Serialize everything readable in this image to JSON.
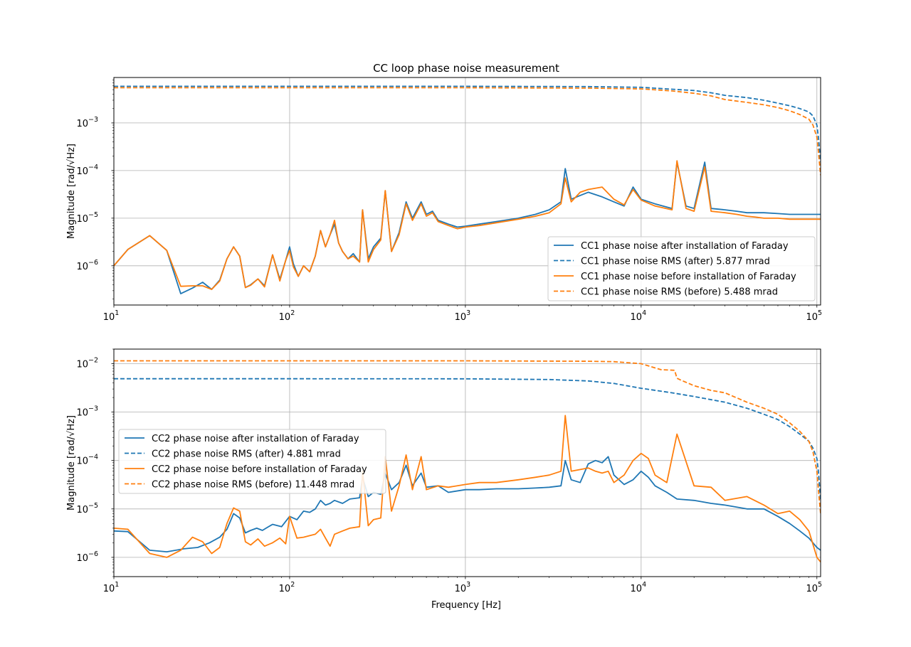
{
  "colors": {
    "after": "#1f77b4",
    "before": "#ff7f0e",
    "grid": "#b0b0b0",
    "axes": "#000000"
  },
  "chart_data": [
    {
      "type": "line",
      "title": "CC loop phase noise measurement",
      "xlabel": "",
      "ylabel": "Magnitude [rad/√Hz]",
      "xscale": "log",
      "yscale": "log",
      "xlim": [
        10,
        105000
      ],
      "ylim": [
        1.5e-07,
        0.009
      ],
      "grid": true,
      "legend_position": "lower right",
      "xticks": [
        {
          "base": "10",
          "exp": "1"
        },
        {
          "base": "10",
          "exp": "2"
        },
        {
          "base": "10",
          "exp": "3"
        },
        {
          "base": "10",
          "exp": "4"
        },
        {
          "base": "10",
          "exp": "5"
        }
      ],
      "yticks": [
        {
          "base": "10",
          "exp": "−6"
        },
        {
          "base": "10",
          "exp": "−5"
        },
        {
          "base": "10",
          "exp": "−4"
        },
        {
          "base": "10",
          "exp": "−3"
        }
      ],
      "series": [
        {
          "name": "CC1 phase noise after installation of Faraday",
          "color": "#1f77b4",
          "style": "solid",
          "x": [
            10,
            12,
            16,
            20,
            24,
            28,
            32,
            36,
            40,
            44,
            48,
            52,
            56,
            60,
            66,
            72,
            80,
            88,
            95,
            100,
            105,
            112,
            120,
            130,
            140,
            150,
            160,
            170,
            180,
            190,
            200,
            215,
            230,
            250,
            260,
            280,
            300,
            330,
            350,
            380,
            420,
            460,
            500,
            560,
            600,
            650,
            700,
            800,
            900,
            1000,
            1200,
            1500,
            2000,
            2500,
            3000,
            3500,
            3700,
            4000,
            4500,
            5000,
            6000,
            7000,
            8000,
            9000,
            10000,
            12000,
            15000,
            16000,
            18000,
            20000,
            23000,
            25000,
            30000,
            35000,
            40000,
            45000,
            50000,
            60000,
            70000,
            80000,
            90000,
            100000,
            105000
          ],
          "y": [
            1e-06,
            2.2e-06,
            4.3e-06,
            2.1e-06,
            2.6e-07,
            3.4e-07,
            4.5e-07,
            3.2e-07,
            5e-07,
            1.4e-06,
            2.5e-06,
            1.6e-06,
            3.5e-07,
            4e-07,
            5.3e-07,
            3.8e-07,
            1.7e-06,
            5.2e-07,
            1.3e-06,
            2.5e-06,
            1.1e-06,
            6e-07,
            1e-06,
            7.5e-07,
            1.6e-06,
            5.5e-06,
            2.5e-06,
            4.5e-06,
            7.5e-06,
            3e-06,
            2e-06,
            1.4e-06,
            1.8e-06,
            1.2e-06,
            1.5e-05,
            1.4e-06,
            2.5e-06,
            3.8e-06,
            3.7e-05,
            2e-06,
            5e-06,
            2.2e-05,
            1e-05,
            2.2e-05,
            1.2e-05,
            1.4e-05,
            9e-06,
            7.5e-06,
            6.5e-06,
            6.8e-06,
            7.5e-06,
            8.5e-06,
            1e-05,
            1.2e-05,
            1.5e-05,
            2.2e-05,
            0.00011,
            2.5e-05,
            3e-05,
            3.5e-05,
            2.8e-05,
            2.2e-05,
            1.8e-05,
            4.5e-05,
            2.5e-05,
            2e-05,
            1.6e-05,
            0.00015,
            1.8e-05,
            1.6e-05,
            0.00015,
            1.6e-05,
            1.5e-05,
            1.4e-05,
            1.3e-05,
            1.3e-05,
            1.3e-05,
            1.25e-05,
            1.2e-05,
            1.2e-05,
            1.2e-05,
            1.2e-05,
            1.2e-05
          ]
        },
        {
          "name": "CC1 phase noise RMS (after) 5.877 mrad",
          "color": "#1f77b4",
          "style": "dashed",
          "x": [
            10,
            100,
            1000,
            5000,
            10000,
            15000,
            20000,
            25000,
            30000,
            40000,
            50000,
            60000,
            70000,
            80000,
            90000,
            95000,
            100000,
            102000,
            105000
          ],
          "y": [
            0.00588,
            0.00588,
            0.00587,
            0.0058,
            0.0056,
            0.0051,
            0.0048,
            0.0043,
            0.0038,
            0.0034,
            0.003,
            0.0026,
            0.0023,
            0.002,
            0.0017,
            0.0014,
            0.0009,
            0.0005,
            0.00015
          ]
        },
        {
          "name": "CC1 phase noise before installation of Faraday",
          "color": "#ff7f0e",
          "style": "solid",
          "x": [
            10,
            12,
            16,
            20,
            24,
            28,
            32,
            36,
            40,
            44,
            48,
            52,
            56,
            60,
            66,
            72,
            80,
            88,
            95,
            100,
            105,
            112,
            120,
            130,
            140,
            150,
            160,
            170,
            180,
            190,
            200,
            215,
            230,
            250,
            260,
            280,
            300,
            330,
            350,
            380,
            420,
            460,
            500,
            560,
            600,
            650,
            700,
            800,
            900,
            1000,
            1200,
            1500,
            2000,
            2500,
            3000,
            3500,
            3700,
            4000,
            4500,
            5000,
            6000,
            7000,
            8000,
            9000,
            10000,
            12000,
            15000,
            16000,
            18000,
            20000,
            23000,
            25000,
            30000,
            35000,
            40000,
            45000,
            50000,
            60000,
            70000,
            80000,
            90000,
            100000,
            105000
          ],
          "y": [
            1e-06,
            2.2e-06,
            4.3e-06,
            2.1e-06,
            3.7e-07,
            3.8e-07,
            3.8e-07,
            3.2e-07,
            4.8e-07,
            1.4e-06,
            2.5e-06,
            1.6e-06,
            3.5e-07,
            3.9e-07,
            5.3e-07,
            3.6e-07,
            1.7e-06,
            4.8e-07,
            1.3e-06,
            2.1e-06,
            9.5e-07,
            6e-07,
            1e-06,
            7.5e-07,
            1.6e-06,
            5.5e-06,
            2.5e-06,
            4.5e-06,
            9e-06,
            3e-06,
            2e-06,
            1.4e-06,
            1.6e-06,
            1.2e-06,
            1.5e-05,
            1.2e-06,
            2.2e-06,
            3.5e-06,
            3.8e-05,
            2e-06,
            4.5e-06,
            2e-05,
            9e-06,
            2e-05,
            1.1e-05,
            1.3e-05,
            8.5e-06,
            7e-06,
            6e-06,
            6.5e-06,
            7e-06,
            8e-06,
            9.5e-06,
            1.1e-05,
            1.3e-05,
            2e-05,
            7e-05,
            2.2e-05,
            3.5e-05,
            4e-05,
            4.5e-05,
            2.5e-05,
            1.9e-05,
            4e-05,
            2.4e-05,
            1.8e-05,
            1.5e-05,
            0.00016,
            1.6e-05,
            1.4e-05,
            0.00012,
            1.4e-05,
            1.3e-05,
            1.2e-05,
            1.1e-05,
            1.05e-05,
            1e-05,
            1e-05,
            9.5e-06,
            9.5e-06,
            9.5e-06,
            9.5e-06,
            9.5e-06
          ]
        },
        {
          "name": "CC1 phase noise RMS (before) 5.488 mrad",
          "color": "#ff7f0e",
          "style": "dashed",
          "x": [
            10,
            100,
            1000,
            5000,
            10000,
            15000,
            20000,
            25000,
            30000,
            40000,
            50000,
            60000,
            70000,
            80000,
            90000,
            95000,
            100000,
            102000,
            105000
          ],
          "y": [
            0.00549,
            0.00549,
            0.00548,
            0.0054,
            0.0052,
            0.0047,
            0.0042,
            0.0037,
            0.0031,
            0.0027,
            0.0024,
            0.0021,
            0.0018,
            0.0015,
            0.0012,
            0.0009,
            0.0005,
            0.00025,
            8e-05
          ]
        }
      ],
      "legend": [
        "CC1 phase noise after installation of Faraday",
        "CC1 phase noise RMS (after) 5.877 mrad",
        "CC1 phase noise before installation of Faraday",
        "CC1 phase noise RMS (before) 5.488 mrad"
      ]
    },
    {
      "type": "line",
      "title": "",
      "xlabel": "Frequency [Hz]",
      "ylabel": "Magnitude [rad/√Hz]",
      "xscale": "log",
      "yscale": "log",
      "xlim": [
        10,
        105000
      ],
      "ylim": [
        4e-07,
        0.02
      ],
      "grid": true,
      "legend_position": "center left",
      "xticks": [
        {
          "base": "10",
          "exp": "1"
        },
        {
          "base": "10",
          "exp": "2"
        },
        {
          "base": "10",
          "exp": "3"
        },
        {
          "base": "10",
          "exp": "4"
        },
        {
          "base": "10",
          "exp": "5"
        }
      ],
      "yticks": [
        {
          "base": "10",
          "exp": "−6"
        },
        {
          "base": "10",
          "exp": "−5"
        },
        {
          "base": "10",
          "exp": "−4"
        },
        {
          "base": "10",
          "exp": "−3"
        },
        {
          "base": "10",
          "exp": "−2"
        }
      ],
      "series": [
        {
          "name": "CC2 phase noise after installation of Faraday",
          "color": "#1f77b4",
          "style": "solid",
          "x": [
            10,
            12,
            16,
            20,
            25,
            30,
            35,
            40,
            44,
            48,
            52,
            56,
            60,
            65,
            70,
            75,
            80,
            90,
            100,
            110,
            120,
            130,
            140,
            150,
            160,
            170,
            180,
            200,
            220,
            250,
            260,
            280,
            300,
            330,
            350,
            380,
            420,
            460,
            500,
            560,
            600,
            700,
            800,
            1000,
            1200,
            1500,
            2000,
            2500,
            3000,
            3500,
            3700,
            4000,
            4500,
            5000,
            5500,
            6000,
            6500,
            7000,
            8000,
            9000,
            10000,
            11000,
            12000,
            14000,
            16000,
            20000,
            25000,
            30000,
            40000,
            50000,
            60000,
            70000,
            80000,
            90000,
            100000,
            105000
          ],
          "y": [
            3.5e-06,
            3.4e-06,
            1.4e-06,
            1.3e-06,
            1.5e-06,
            1.6e-06,
            2e-06,
            2.6e-06,
            3.8e-06,
            8e-06,
            6.5e-06,
            3.2e-06,
            3.6e-06,
            4e-06,
            3.6e-06,
            4.2e-06,
            4.8e-06,
            4.3e-06,
            7e-06,
            6e-06,
            9e-06,
            8.5e-06,
            1e-05,
            1.5e-05,
            1.2e-05,
            1.3e-05,
            1.5e-05,
            1.3e-05,
            1.6e-05,
            1.7e-05,
            4.5e-05,
            1.8e-05,
            2.2e-05,
            2e-05,
            5.5e-05,
            2.5e-05,
            3.5e-05,
            8e-05,
            3e-05,
            5.5e-05,
            2.8e-05,
            3e-05,
            2.2e-05,
            2.5e-05,
            2.5e-05,
            2.6e-05,
            2.6e-05,
            2.7e-05,
            2.8e-05,
            3e-05,
            0.0001,
            4e-05,
            3.5e-05,
            8.5e-05,
            0.0001,
            9e-05,
            0.00012,
            5e-05,
            3.2e-05,
            4e-05,
            6e-05,
            4.5e-05,
            3e-05,
            2.2e-05,
            1.6e-05,
            1.5e-05,
            1.3e-05,
            1.2e-05,
            1e-05,
            1e-05,
            7e-06,
            5e-06,
            3.5e-06,
            2.5e-06,
            1.6e-06,
            1.4e-06
          ]
        },
        {
          "name": "CC2 phase noise RMS (after) 4.881 mrad",
          "color": "#1f77b4",
          "style": "dashed",
          "x": [
            10,
            100,
            1000,
            3000,
            5000,
            7000,
            10000,
            15000,
            20000,
            30000,
            40000,
            50000,
            60000,
            70000,
            80000,
            90000,
            95000,
            100000,
            102000,
            105000
          ],
          "y": [
            0.00488,
            0.00488,
            0.00487,
            0.0047,
            0.0044,
            0.0039,
            0.0031,
            0.0025,
            0.0021,
            0.0016,
            0.0012,
            0.0009,
            0.0007,
            0.0005,
            0.00035,
            0.00025,
            0.00018,
            0.00011,
            6e-05,
            1.5e-05
          ]
        },
        {
          "name": "CC2 phase noise before installation of Faraday",
          "color": "#ff7f0e",
          "style": "solid",
          "x": [
            10,
            12,
            16,
            20,
            24,
            28,
            32,
            36,
            40,
            44,
            48,
            52,
            56,
            60,
            66,
            72,
            80,
            88,
            95,
            100,
            110,
            120,
            130,
            140,
            150,
            160,
            170,
            180,
            200,
            220,
            250,
            260,
            280,
            300,
            330,
            350,
            380,
            420,
            460,
            500,
            560,
            600,
            700,
            800,
            1000,
            1200,
            1500,
            2000,
            2500,
            3000,
            3500,
            3700,
            4000,
            4500,
            5000,
            5500,
            6000,
            6500,
            7000,
            8000,
            9000,
            10000,
            11000,
            12000,
            14000,
            16000,
            20000,
            25000,
            30000,
            40000,
            50000,
            60000,
            70000,
            80000,
            90000,
            100000,
            105000
          ],
          "y": [
            4e-06,
            3.8e-06,
            1.2e-06,
            1e-06,
            1.4e-06,
            2.6e-06,
            2.1e-06,
            1.2e-06,
            1.6e-06,
            5e-06,
            1.05e-05,
            9e-06,
            2.1e-06,
            1.8e-06,
            2.4e-06,
            1.7e-06,
            2e-06,
            2.5e-06,
            1.9e-06,
            7e-06,
            2.5e-06,
            2.6e-06,
            2.8e-06,
            3e-06,
            3.8e-06,
            2.5e-06,
            1.7e-06,
            3e-06,
            3.5e-06,
            4e-06,
            4.3e-06,
            6e-05,
            4.5e-06,
            6e-06,
            6.5e-06,
            0.00012,
            9e-06,
            3e-05,
            0.00013,
            2.5e-05,
            0.00012,
            2.5e-05,
            3e-05,
            2.8e-05,
            3.2e-05,
            3.5e-05,
            3.5e-05,
            4e-05,
            4.5e-05,
            5e-05,
            6e-05,
            0.00085,
            6e-05,
            6.5e-05,
            7e-05,
            6e-05,
            5.5e-05,
            6e-05,
            3.5e-05,
            5e-05,
            0.0001,
            0.00014,
            0.00011,
            5e-05,
            3.5e-05,
            0.00035,
            3e-05,
            2.8e-05,
            1.5e-05,
            1.8e-05,
            1.2e-05,
            8e-06,
            9e-06,
            6e-06,
            3.5e-06,
            1e-06,
            8e-07
          ]
        },
        {
          "name": "CC2 phase noise RMS (before) 11.448 mrad",
          "color": "#ff7f0e",
          "style": "dashed",
          "x": [
            10,
            100,
            1000,
            3000,
            5000,
            7000,
            10000,
            13000,
            15500,
            16000,
            17000,
            20000,
            25000,
            30000,
            40000,
            50000,
            60000,
            70000,
            80000,
            90000,
            95000,
            100000,
            102000,
            105000
          ],
          "y": [
            0.01145,
            0.01145,
            0.01144,
            0.0113,
            0.0112,
            0.011,
            0.01,
            0.0075,
            0.0073,
            0.005,
            0.0045,
            0.0035,
            0.0028,
            0.0025,
            0.0016,
            0.0012,
            0.0009,
            0.0006,
            0.0004,
            0.00025,
            0.00015,
            6e-05,
            2.5e-05,
            8e-06
          ]
        }
      ],
      "legend": [
        "CC2 phase noise after installation of Faraday",
        "CC2 phase noise RMS (after) 4.881 mrad",
        "CC2 phase noise before installation of Faraday",
        "CC2 phase noise RMS (before) 11.448 mrad"
      ]
    }
  ]
}
